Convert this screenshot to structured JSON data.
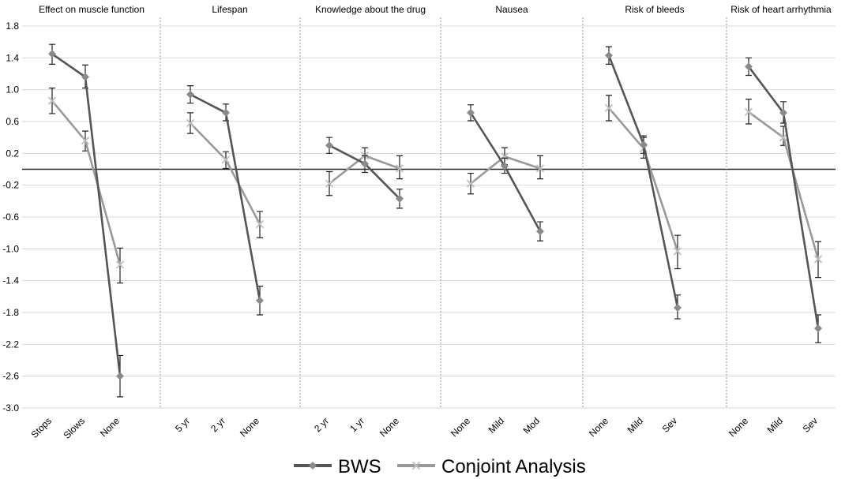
{
  "chart_data": {
    "type": "line",
    "ylim": [
      -3.0,
      1.8
    ],
    "y_ticks": [
      "1.8",
      "1.4",
      "1.0",
      "0.6",
      "0.2",
      "-0.2",
      "-0.6",
      "-1.0",
      "-1.4",
      "-1.8",
      "-2.2",
      "-2.6",
      "-3.0"
    ],
    "y_tick_values": [
      1.8,
      1.4,
      1.0,
      0.6,
      0.2,
      -0.2,
      -0.6,
      -1.0,
      -1.4,
      -1.8,
      -2.2,
      -2.6,
      -3.0
    ],
    "grid": "horizontal",
    "legend_position": "bottom",
    "legend": [
      "BWS",
      "Conjoint Analysis"
    ],
    "series_colors": {
      "BWS": "#555555",
      "Conjoint Analysis": "#999999"
    },
    "panels": [
      {
        "title": "Effect on muscle function",
        "categories": [
          "Stops",
          "Slows",
          "None"
        ],
        "BWS": {
          "values": [
            1.45,
            1.16,
            -2.6
          ],
          "err_low": [
            1.32,
            1.02,
            -2.86
          ],
          "err_high": [
            1.57,
            1.31,
            -2.34
          ]
        },
        "Conjoint Analysis": {
          "values": [
            0.86,
            0.36,
            -1.2
          ],
          "err_low": [
            0.7,
            0.23,
            -1.43
          ],
          "err_high": [
            1.02,
            0.48,
            -0.99
          ]
        }
      },
      {
        "title": "Lifespan",
        "categories": [
          "5 yr",
          "2 yr",
          "None"
        ],
        "BWS": {
          "values": [
            0.94,
            0.71,
            -1.65
          ],
          "err_low": [
            0.83,
            0.61,
            -1.83
          ],
          "err_high": [
            1.05,
            0.82,
            -1.47
          ]
        },
        "Conjoint Analysis": {
          "values": [
            0.58,
            0.12,
            -0.69
          ],
          "err_low": [
            0.45,
            0.01,
            -0.86
          ],
          "err_high": [
            0.71,
            0.22,
            -0.53
          ]
        }
      },
      {
        "title": "Knowledge about the drug",
        "categories": [
          "2 yr",
          "1 yr",
          "None"
        ],
        "BWS": {
          "values": [
            0.3,
            0.07,
            -0.37
          ],
          "err_low": [
            0.2,
            -0.04,
            -0.49
          ],
          "err_high": [
            0.4,
            0.17,
            -0.25
          ]
        },
        "Conjoint Analysis": {
          "values": [
            -0.18,
            0.17,
            0.01
          ],
          "err_low": [
            -0.33,
            0.06,
            -0.12
          ],
          "err_high": [
            -0.03,
            0.27,
            0.17
          ]
        }
      },
      {
        "title": "Nausea",
        "categories": [
          "None",
          "Mild",
          "Mod"
        ],
        "BWS": {
          "values": [
            0.71,
            0.04,
            -0.78
          ],
          "err_low": [
            0.61,
            -0.05,
            -0.9
          ],
          "err_high": [
            0.81,
            0.14,
            -0.66
          ]
        },
        "Conjoint Analysis": {
          "values": [
            -0.18,
            0.16,
            0.01
          ],
          "err_low": [
            -0.31,
            0.06,
            -0.12
          ],
          "err_high": [
            -0.05,
            0.27,
            0.17
          ]
        }
      },
      {
        "title": "Risk of bleeds",
        "categories": [
          "None",
          "Mild",
          "Sev"
        ],
        "BWS": {
          "values": [
            1.43,
            0.31,
            -1.74
          ],
          "err_low": [
            1.32,
            0.2,
            -1.88
          ],
          "err_high": [
            1.54,
            0.42,
            -1.58
          ]
        },
        "Conjoint Analysis": {
          "values": [
            0.77,
            0.26,
            -1.03
          ],
          "err_low": [
            0.61,
            0.14,
            -1.25
          ],
          "err_high": [
            0.93,
            0.4,
            -0.83
          ]
        }
      },
      {
        "title": "Risk of heart arrhythmia",
        "categories": [
          "None",
          "Mild",
          "Sev"
        ],
        "BWS": {
          "values": [
            1.29,
            0.71,
            -2.0
          ],
          "err_low": [
            1.18,
            0.58,
            -2.18
          ],
          "err_high": [
            1.4,
            0.85,
            -1.83
          ]
        },
        "Conjoint Analysis": {
          "values": [
            0.72,
            0.4,
            -1.13
          ],
          "err_low": [
            0.57,
            0.3,
            -1.36
          ],
          "err_high": [
            0.88,
            0.54,
            -0.91
          ]
        }
      }
    ]
  }
}
